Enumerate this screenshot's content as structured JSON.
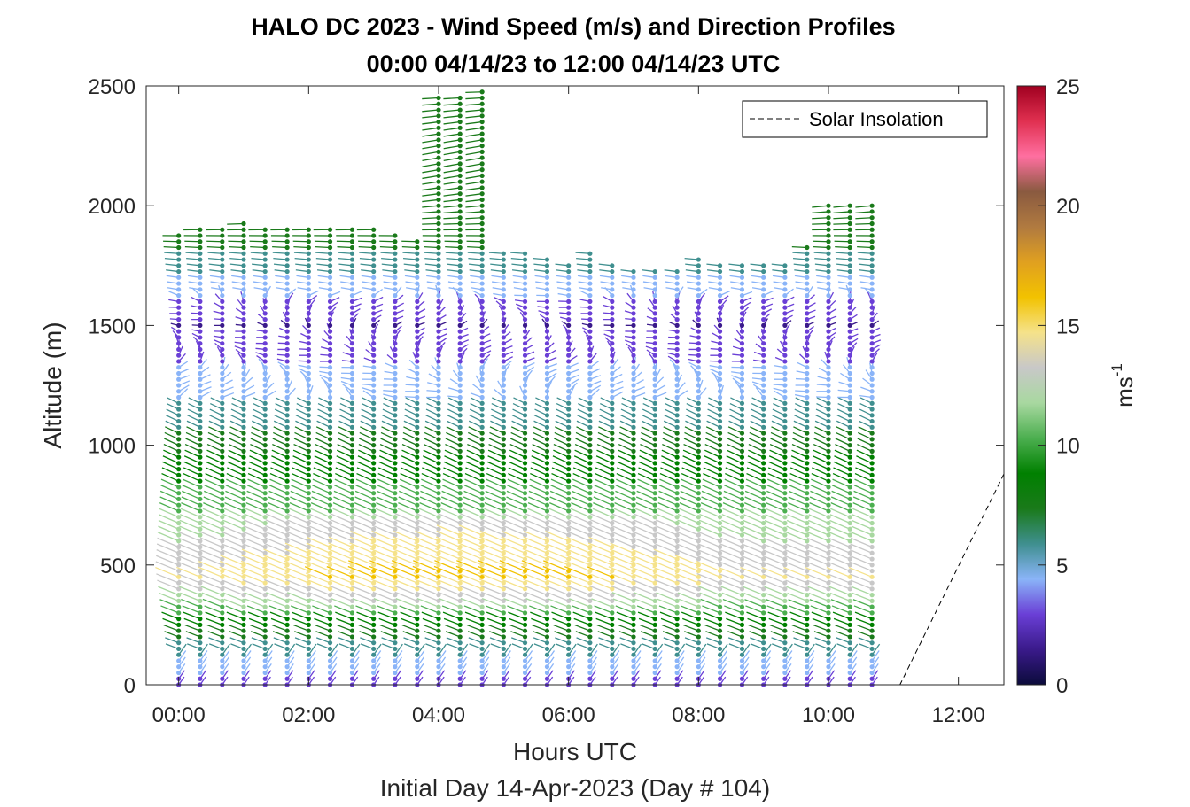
{
  "chart_data": {
    "type": "wind-barb-profile",
    "title_line1": "HALO DC 2023 - Wind Speed (m/s) and Direction Profiles",
    "title_line2": "00:00 04/14/23 to 12:00 04/14/23  UTC",
    "xlabel": "Hours UTC",
    "xlabel2": "Initial Day 14-Apr-2023 (Day # 104)",
    "ylabel": "Altitude (m)",
    "xlim": [
      -0.5,
      12.7
    ],
    "ylim": [
      0,
      2500
    ],
    "xticks": [
      0,
      2,
      4,
      6,
      8,
      10,
      12
    ],
    "xtick_labels": [
      "00:00",
      "02:00",
      "04:00",
      "06:00",
      "08:00",
      "10:00",
      "12:00"
    ],
    "yticks": [
      0,
      500,
      1000,
      1500,
      2000,
      2500
    ],
    "ytick_labels": [
      "0",
      "500",
      "1000",
      "1500",
      "2000",
      "2500"
    ],
    "colorbar": {
      "label": "ms",
      "label_exponent": "-1",
      "range": [
        0,
        25
      ],
      "ticks": [
        0,
        5,
        10,
        15,
        20,
        25
      ],
      "tick_labels": [
        "0",
        "5",
        "10",
        "15",
        "20",
        "25"
      ],
      "colors": [
        "#0b0b3b",
        "#3a1a8a",
        "#6a3fd6",
        "#8ab4f8",
        "#3f8f8f",
        "#1a7a1a",
        "#008000",
        "#4caf50",
        "#a8d8a0",
        "#c8c8c8",
        "#f5e28a",
        "#f2c200",
        "#e0a020",
        "#b07a40",
        "#8a5a40",
        "#ff6fa0",
        "#e03050",
        "#a00020"
      ]
    },
    "legend": [
      {
        "name": "Solar Insolation",
        "style": "dashed",
        "color": "#000000"
      }
    ],
    "profile_times_h": [
      0.0,
      0.33,
      0.67,
      1.0,
      1.33,
      1.67,
      2.0,
      2.33,
      2.67,
      3.0,
      3.33,
      3.67,
      4.0,
      4.33,
      4.67,
      5.0,
      5.33,
      5.67,
      6.0,
      6.33,
      6.67,
      7.0,
      7.33,
      7.67,
      8.0,
      8.33,
      8.67,
      9.0,
      9.33,
      9.67,
      10.0,
      10.33,
      10.67
    ],
    "profile_top_m": [
      1880,
      1900,
      1900,
      1940,
      1900,
      1900,
      1900,
      1900,
      1900,
      1900,
      1880,
      1850,
      2450,
      2450,
      2480,
      1800,
      1800,
      1780,
      1760,
      1800,
      1760,
      1740,
      1740,
      1740,
      1780,
      1760,
      1760,
      1750,
      1760,
      1840,
      2000,
      2000,
      2000
    ],
    "barb_spacing_m": 25,
    "speed_model_ms": [
      {
        "altitude_m": 0,
        "speed": 3
      },
      {
        "altitude_m": 200,
        "speed": 7
      },
      {
        "altitude_m": 450,
        "speed": 14
      },
      {
        "altitude_m": 800,
        "speed": 10
      },
      {
        "altitude_m": 1200,
        "speed": 5
      },
      {
        "altitude_m": 1500,
        "speed": 2
      },
      {
        "altitude_m": 1900,
        "speed": 8
      }
    ],
    "solar_insolation": {
      "x": [
        -0.5,
        11.1,
        12.7
      ],
      "y": [
        0,
        0,
        880
      ]
    }
  }
}
